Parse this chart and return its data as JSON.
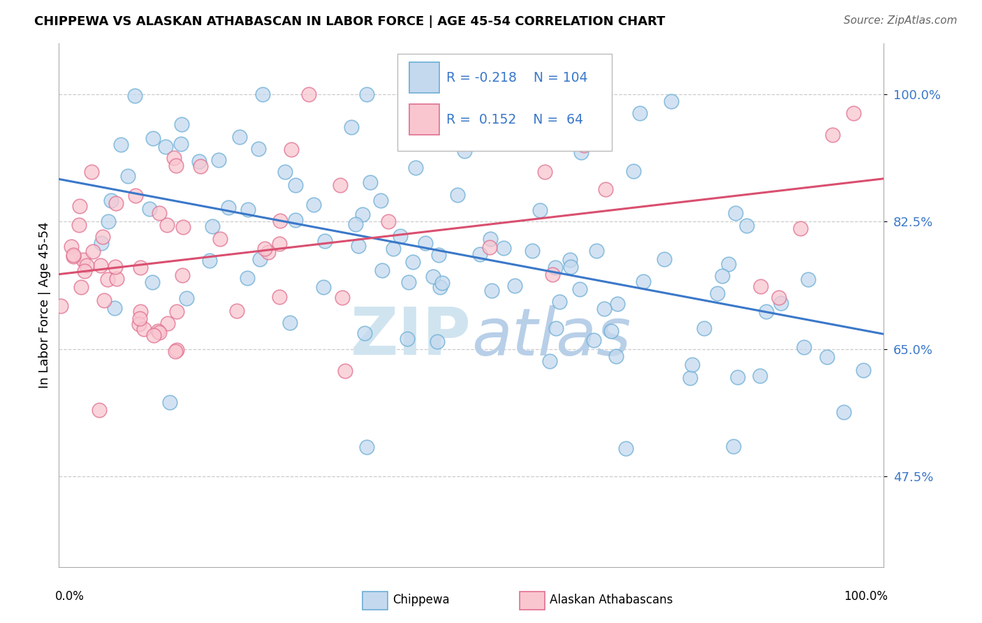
{
  "title": "CHIPPEWA VS ALASKAN ATHABASCAN IN LABOR FORCE | AGE 45-54 CORRELATION CHART",
  "source": "Source: ZipAtlas.com",
  "ylabel": "In Labor Force | Age 45-54",
  "xlim": [
    0.0,
    100.0
  ],
  "ylim": [
    35.0,
    107.0
  ],
  "yticks": [
    47.5,
    65.0,
    82.5,
    100.0
  ],
  "ytick_labels": [
    "47.5%",
    "65.0%",
    "82.5%",
    "100.0%"
  ],
  "xtick_left": "0.0%",
  "xtick_right": "100.0%",
  "legend_blue_r": "-0.218",
  "legend_blue_n": "104",
  "legend_pink_r": "0.152",
  "legend_pink_n": "64",
  "blue_face": "#c5d9ee",
  "blue_edge": "#6baed6",
  "pink_face": "#f9c6d0",
  "pink_edge": "#e07090",
  "trend_blue": "#3a78c9",
  "trend_pink": "#d94f70",
  "watermark_color": "#d0e4f0",
  "legend_text_color": "#3a78c9",
  "ytick_color": "#3a78c9",
  "grid_color": "#cccccc",
  "background": "#ffffff"
}
